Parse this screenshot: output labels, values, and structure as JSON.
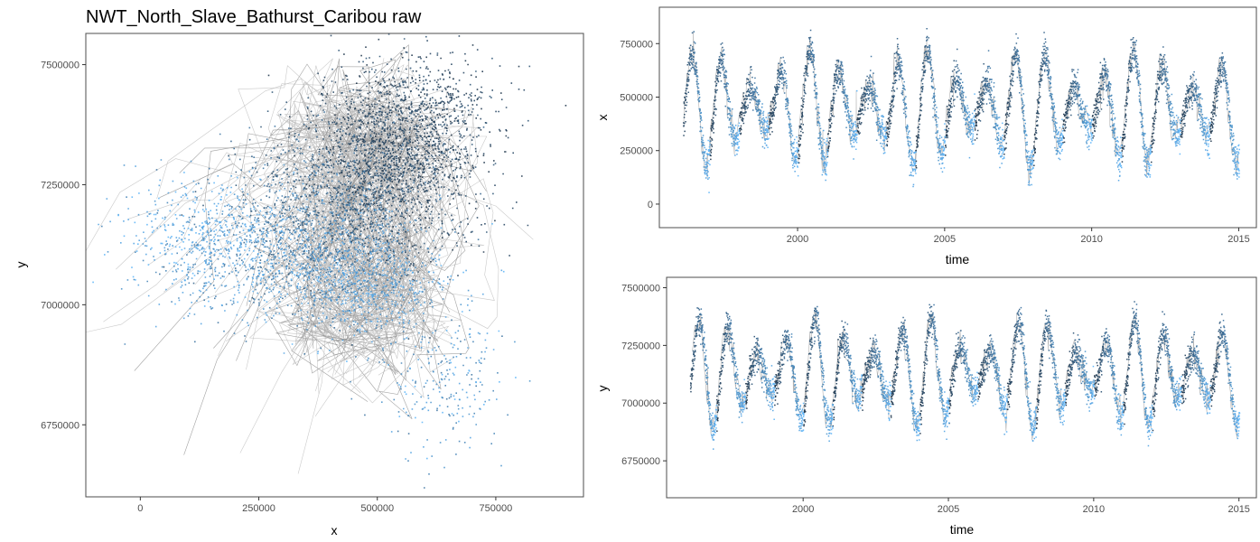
{
  "chart_data": [
    {
      "id": "map",
      "type": "scatter",
      "title": "NWT_North_Slave_Bathurst_Caribou raw",
      "xlabel": "x",
      "ylabel": "y",
      "xlim": [
        -115000,
        935000
      ],
      "ylim": [
        6600000,
        7565000
      ],
      "xticks": [
        {
          "v": 0,
          "label": "0"
        },
        {
          "v": 250000,
          "label": "250000"
        },
        {
          "v": 500000,
          "label": "500000"
        },
        {
          "v": 750000,
          "label": "750000"
        }
      ],
      "yticks": [
        {
          "v": 6750000,
          "label": "6750000"
        },
        {
          "v": 7000000,
          "label": "7000000"
        },
        {
          "v": 7250000,
          "label": "7250000"
        },
        {
          "v": 7500000,
          "label": "7500000"
        }
      ],
      "grid": false,
      "colors": {
        "dark": "#132b43",
        "light": "#56b1f7",
        "track": "#bdbdbd"
      }
    },
    {
      "id": "x-vs-time",
      "type": "line",
      "xlabel": "time",
      "ylabel": "x",
      "xlim": [
        1995.3,
        2015.6
      ],
      "ylim": [
        -110000,
        920000
      ],
      "xticks": [
        {
          "v": 2000,
          "label": "2000"
        },
        {
          "v": 2005,
          "label": "2005"
        },
        {
          "v": 2010,
          "label": "2010"
        },
        {
          "v": 2015,
          "label": "2015"
        }
      ],
      "yticks": [
        {
          "v": 0,
          "label": "0"
        },
        {
          "v": 250000,
          "label": "250000"
        },
        {
          "v": 500000,
          "label": "500000"
        },
        {
          "v": 750000,
          "label": "750000"
        }
      ],
      "grid": false
    },
    {
      "id": "y-vs-time",
      "type": "line",
      "xlabel": "time",
      "ylabel": "y",
      "xlim": [
        1995.3,
        2015.6
      ],
      "ylim": [
        6590000,
        7545000
      ],
      "xticks": [
        {
          "v": 2000,
          "label": "2000"
        },
        {
          "v": 2005,
          "label": "2005"
        },
        {
          "v": 2010,
          "label": "2010"
        },
        {
          "v": 2015,
          "label": "2015"
        }
      ],
      "yticks": [
        {
          "v": 6750000,
          "label": "6750000"
        },
        {
          "v": 7000000,
          "label": "7000000"
        },
        {
          "v": 7250000,
          "label": "7250000"
        },
        {
          "v": 7500000,
          "label": "7500000"
        }
      ],
      "grid": false
    }
  ]
}
